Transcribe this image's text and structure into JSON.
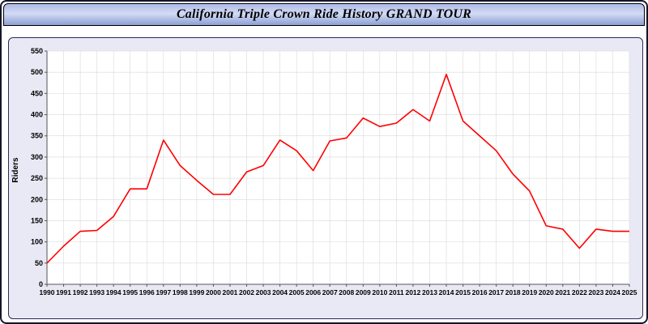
{
  "header": {
    "title": "California Triple Crown Ride History GRAND TOUR"
  },
  "chart_data": {
    "type": "line",
    "title": "California Triple Crown Ride History GRAND TOUR",
    "xlabel": "",
    "ylabel": "Riders",
    "ylim": [
      0,
      550
    ],
    "ytick_step": 50,
    "grid": true,
    "legend": "none",
    "x": [
      1990,
      1991,
      1992,
      1993,
      1994,
      1995,
      1996,
      1997,
      1998,
      1999,
      2000,
      2001,
      2002,
      2003,
      2004,
      2005,
      2006,
      2007,
      2008,
      2009,
      2010,
      2011,
      2012,
      2013,
      2014,
      2015,
      2016,
      2017,
      2018,
      2019,
      2020,
      2021,
      2022,
      2023,
      2024,
      2025
    ],
    "series": [
      {
        "name": "Riders",
        "color": "#ff0000",
        "values": [
          50,
          90,
          125,
          127,
          160,
          225,
          225,
          340,
          280,
          245,
          212,
          212,
          265,
          280,
          340,
          315,
          268,
          338,
          345,
          392,
          372,
          380,
          412,
          385,
          495,
          385,
          350,
          315,
          260,
          220,
          138,
          130,
          85,
          130,
          125,
          125
        ]
      }
    ],
    "colors": {
      "line": "#ff0000",
      "panel_bg": "#e9e9f6",
      "plot_bg": "#ffffff",
      "grid": "#d9d9d9",
      "axis": "#555555",
      "tick_text": "#000000"
    }
  }
}
